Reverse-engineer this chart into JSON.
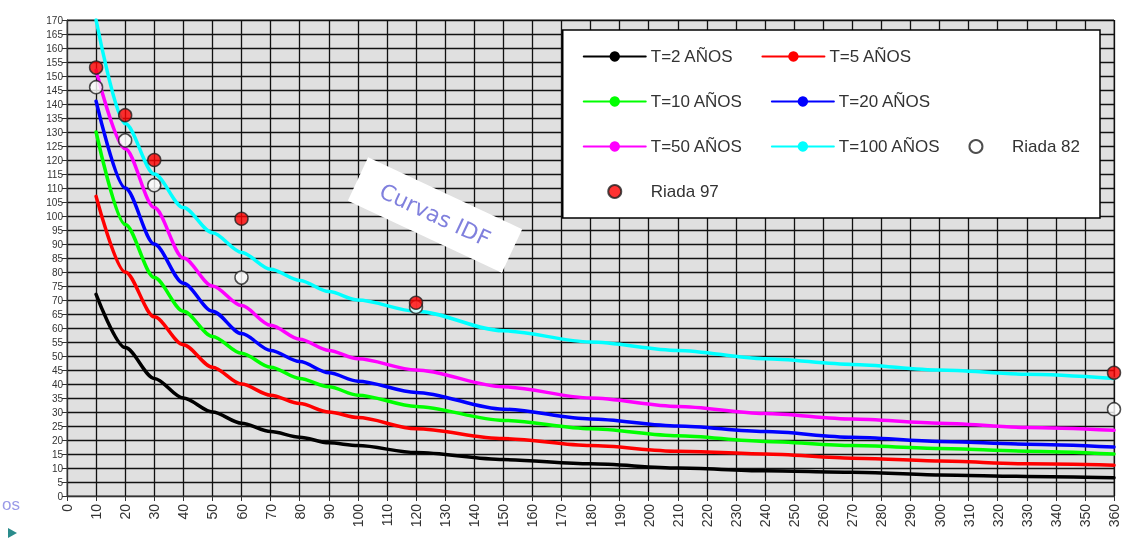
{
  "chart_data": {
    "type": "line",
    "annotations": [
      "Curvas IDF",
      "os"
    ],
    "xlim": [
      0,
      360
    ],
    "xticks": [
      0,
      10,
      20,
      30,
      40,
      50,
      60,
      70,
      80,
      90,
      100,
      110,
      120,
      130,
      140,
      150,
      160,
      170,
      180,
      190,
      200,
      210,
      220,
      230,
      240,
      250,
      260,
      270,
      280,
      290,
      300,
      310,
      320,
      330,
      340,
      350,
      360
    ],
    "ylim": [
      0,
      170
    ],
    "yticks": [
      0,
      5,
      10,
      15,
      20,
      25,
      30,
      35,
      40,
      45,
      50,
      55,
      60,
      65,
      70,
      75,
      80,
      85,
      90,
      95,
      100,
      105,
      110,
      115,
      120,
      125,
      130,
      135,
      140,
      145,
      150,
      155,
      160,
      165,
      170
    ],
    "grid": true,
    "legend": "top right",
    "marker": "none",
    "line_style": "solid",
    "x": [
      10,
      20,
      30,
      40,
      50,
      60,
      70,
      80,
      90,
      100,
      120,
      150,
      180,
      210,
      240,
      270,
      300,
      330,
      360
    ],
    "series": [
      {
        "name": "T=2 AÑOS",
        "color": "#000000",
        "values": [
          72,
          53,
          42,
          35,
          30,
          26,
          23,
          21,
          19,
          18,
          15.5,
          13,
          11.5,
          10,
          9,
          8.5,
          7.5,
          7,
          6.5
        ]
      },
      {
        "name": "T=5 AÑOS",
        "color": "#ff0000",
        "values": [
          107,
          80,
          64,
          54,
          46,
          40,
          36,
          33,
          30,
          28,
          24,
          20.5,
          18,
          16,
          15,
          13.5,
          12.5,
          11.5,
          11
        ]
      },
      {
        "name": "T=10 AÑOS",
        "color": "#00ff00",
        "values": [
          130,
          97,
          78,
          66,
          57,
          51,
          46,
          42,
          39,
          36,
          32,
          27,
          24,
          21.5,
          19.5,
          18,
          17,
          16,
          15
        ]
      },
      {
        "name": "T=20 AÑOS",
        "color": "#0000ff",
        "values": [
          141,
          110,
          90,
          76,
          66,
          58,
          52,
          48,
          44,
          41,
          37,
          31,
          27.5,
          25,
          23,
          21,
          19.5,
          18.5,
          17.5
        ]
      },
      {
        "name": "T=50 AÑOS",
        "color": "#ff00ff",
        "values": [
          152,
          124,
          103,
          85,
          75,
          68,
          61,
          56,
          52,
          49,
          45,
          39,
          35,
          32,
          29.5,
          27.5,
          26,
          24.5,
          23.5
        ]
      },
      {
        "name": "T=100 AÑOS",
        "color": "#00ffff",
        "values": [
          170,
          133,
          115,
          103,
          94,
          87,
          81,
          77,
          73,
          70,
          66,
          59,
          55,
          52,
          49,
          47,
          45,
          43.5,
          42
        ]
      },
      {
        "name": "Riada 82",
        "type": "scatter",
        "marker": "circle",
        "color": "#ffffff",
        "x": [
          10,
          20,
          30,
          60,
          120,
          360
        ],
        "values": [
          146,
          127,
          111,
          78,
          67.5,
          31
        ]
      },
      {
        "name": "Riada 97",
        "type": "scatter",
        "marker": "circle",
        "color": "#ff0000",
        "x": [
          10,
          20,
          30,
          60,
          120,
          360
        ],
        "values": [
          153,
          136,
          120,
          99,
          69,
          44
        ]
      }
    ]
  }
}
